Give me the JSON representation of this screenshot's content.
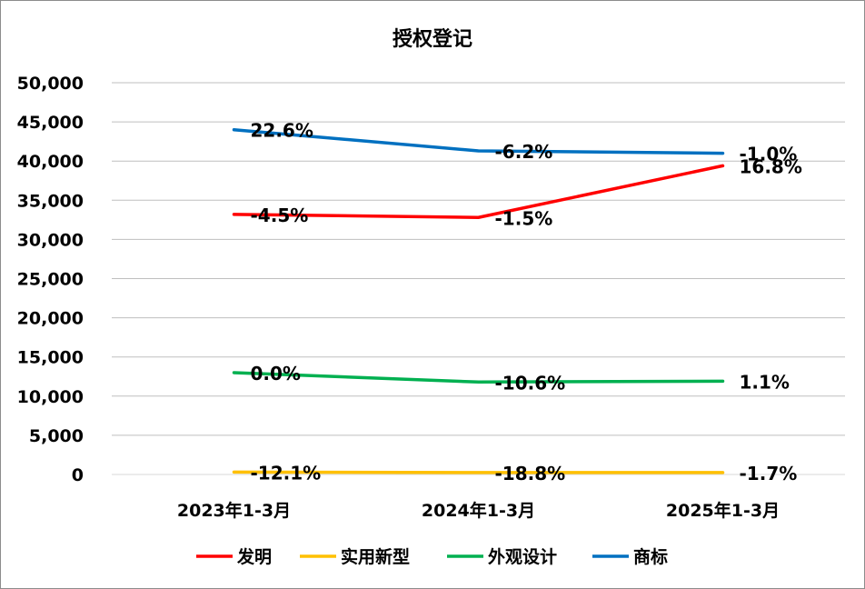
{
  "chart_data": {
    "type": "line",
    "title": "授权登记",
    "categories": [
      "2023年1-3月",
      "2024年1-3月",
      "2025年1-3月"
    ],
    "ylim": [
      0,
      50000
    ],
    "yticks": [
      "0",
      "5,000",
      "10,000",
      "15,000",
      "20,000",
      "25,000",
      "30,000",
      "35,000",
      "40,000",
      "45,000",
      "50,000"
    ],
    "grid": true,
    "legend_position": "bottom",
    "series": [
      {
        "name": "发明",
        "color": "#ff0000",
        "values": [
          33200,
          32800,
          39400
        ],
        "labels": [
          "-4.5%",
          "-1.5%",
          "16.8%"
        ]
      },
      {
        "name": "实用新型",
        "color": "#ffc000",
        "values": [
          300,
          250,
          250
        ],
        "labels": [
          "-12.1%",
          "-18.8%",
          "-1.7%"
        ]
      },
      {
        "name": "外观设计",
        "color": "#00b050",
        "values": [
          13000,
          11800,
          11900
        ],
        "labels": [
          "0.0%",
          "-10.6%",
          "1.1%"
        ]
      },
      {
        "name": "商标",
        "color": "#0070c0",
        "values": [
          44000,
          41300,
          41000
        ],
        "labels": [
          "22.6%",
          "-6.2%",
          "-1.0%"
        ]
      }
    ]
  }
}
